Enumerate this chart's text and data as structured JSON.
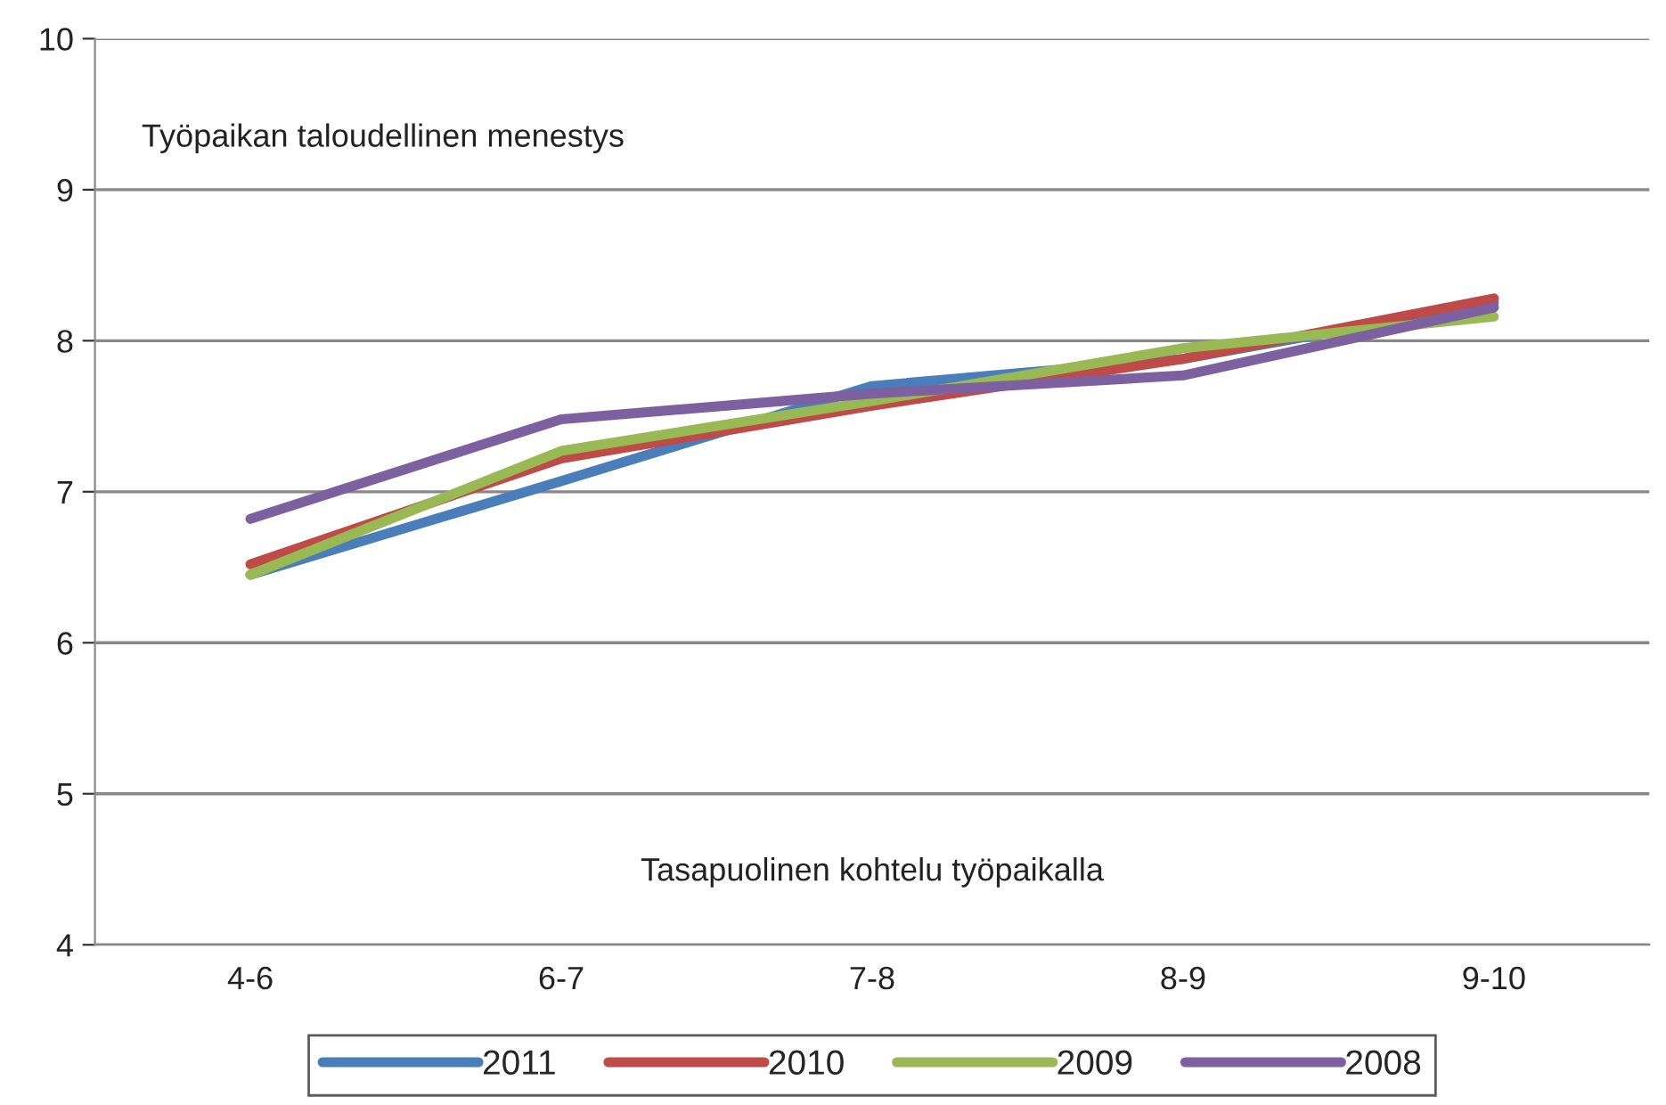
{
  "chart_data": {
    "type": "line",
    "categories": [
      "4-6",
      "6-7",
      "7-8",
      "8-9",
      "9-10"
    ],
    "series": [
      {
        "name": "2011",
        "color": "#4a7ebb",
        "values": [
          6.45,
          7.07,
          7.7,
          7.88,
          8.25
        ]
      },
      {
        "name": "2010",
        "color": "#be4b48",
        "values": [
          6.52,
          7.22,
          7.57,
          7.88,
          8.28
        ]
      },
      {
        "name": "2009",
        "color": "#98b954",
        "values": [
          6.45,
          7.27,
          7.6,
          7.95,
          8.16
        ]
      },
      {
        "name": "2008",
        "color": "#7d60a0",
        "values": [
          6.82,
          7.48,
          7.65,
          7.77,
          8.22
        ]
      }
    ],
    "ylim": [
      4,
      10
    ],
    "yticks": [
      4,
      5,
      6,
      7,
      8,
      9,
      10
    ],
    "grid": "y",
    "legend": "bottom",
    "marker": "none",
    "line_style": "solid",
    "annotations": [
      "Työpaikan taloudellinen menestys",
      "Tasapuolinen kohtelu työpaikalla"
    ]
  }
}
